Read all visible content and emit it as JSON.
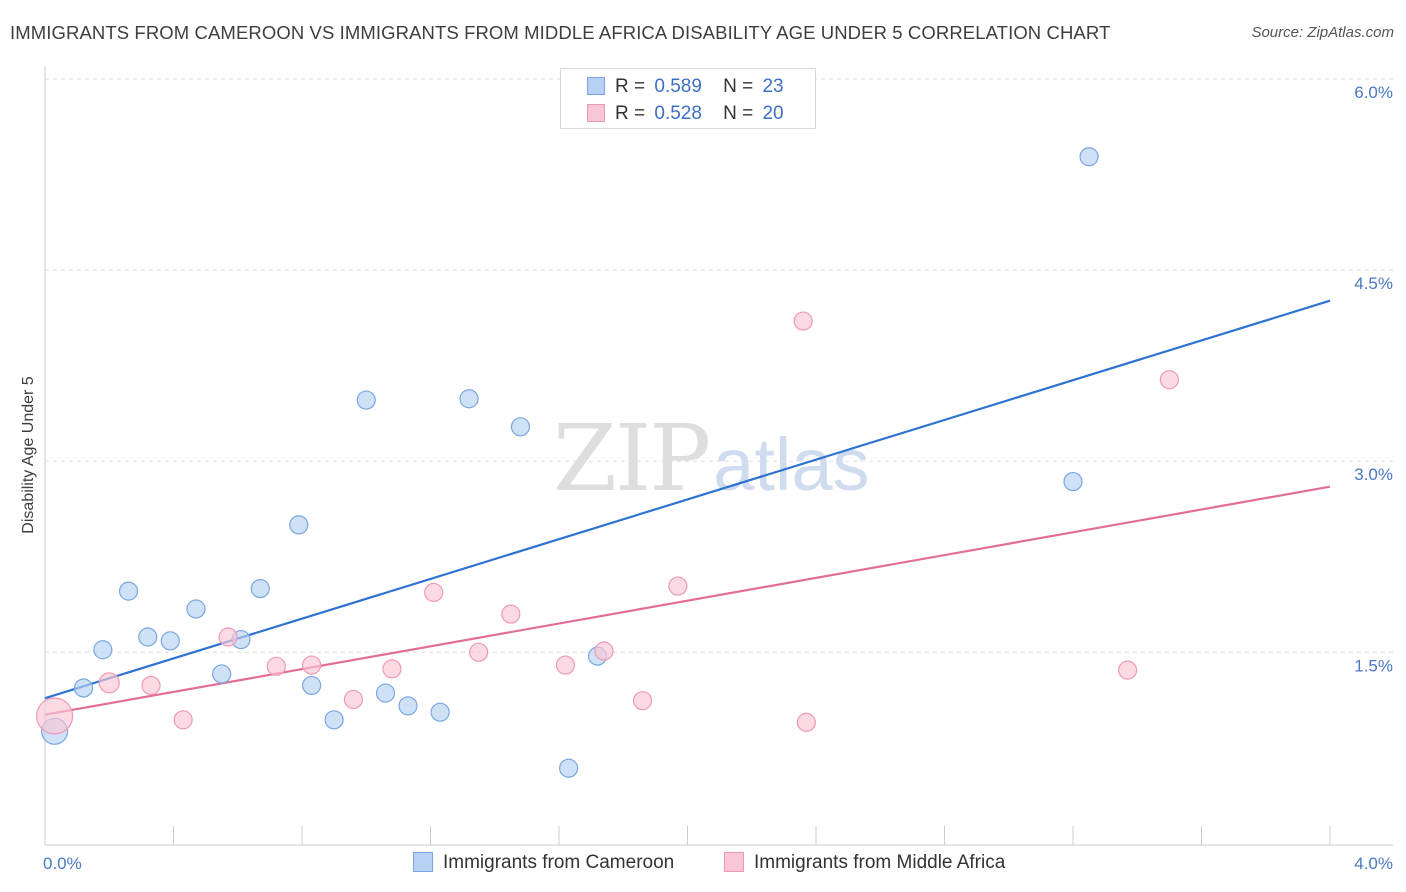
{
  "title": "IMMIGRANTS FROM CAMEROON VS IMMIGRANTS FROM MIDDLE AFRICA DISABILITY AGE UNDER 5 CORRELATION CHART",
  "source": "Source: ZipAtlas.com",
  "watermark": {
    "zip": "ZIP",
    "atlas": "atlas"
  },
  "legend": {
    "rows": [
      {
        "r_label": "R =",
        "r_value": "0.589",
        "n_label": "N =",
        "n_value": "23"
      },
      {
        "r_label": "R =",
        "r_value": "0.528",
        "n_label": "N =",
        "n_value": "20"
      }
    ]
  },
  "bottom_legend": {
    "cameroon": "Immigrants from Cameroon",
    "middle_africa": "Immigrants from Middle Africa"
  },
  "colors": {
    "cameroon_fill": "#b6d1f3",
    "cameroon_stroke": "#7ba6df",
    "cameroon_line": "#2e72d2",
    "middle_fill": "#f9c6d5",
    "middle_stroke": "#ee9ab4",
    "middle_line": "#e26e98",
    "tick_text": "#4a78c2",
    "grid": "#dddddd"
  },
  "chart_data": {
    "type": "scatter",
    "title": "IMMIGRANTS FROM CAMEROON VS IMMIGRANTS FROM MIDDLE AFRICA DISABILITY AGE UNDER 5 CORRELATION CHART",
    "xlabel": "",
    "ylabel": "Disability Age Under 5",
    "xlim": [
      0.0,
      4.0
    ],
    "ylim": [
      0.0,
      6.2
    ],
    "x_tick_labels": [
      "0.0%",
      "4.0%"
    ],
    "y_ticks": [
      1.5,
      3.0,
      4.5,
      6.0
    ],
    "y_tick_labels": [
      "1.5%",
      "3.0%",
      "4.5%",
      "6.0%"
    ],
    "grid": true,
    "series": [
      {
        "name": "Immigrants from Cameroon",
        "r": 0.589,
        "n": 23,
        "points": [
          [
            0.03,
            0.88,
            13
          ],
          [
            0.12,
            1.22,
            9
          ],
          [
            0.18,
            1.52,
            9
          ],
          [
            0.26,
            1.98,
            9
          ],
          [
            0.32,
            1.62,
            9
          ],
          [
            0.39,
            1.59,
            9
          ],
          [
            0.47,
            1.84,
            9
          ],
          [
            0.55,
            1.33,
            9
          ],
          [
            0.61,
            1.6,
            9
          ],
          [
            0.67,
            2.0,
            9
          ],
          [
            0.79,
            2.5,
            9
          ],
          [
            0.83,
            1.24,
            9
          ],
          [
            0.9,
            0.97,
            9
          ],
          [
            1.0,
            3.48,
            9
          ],
          [
            1.06,
            1.18,
            9
          ],
          [
            1.13,
            1.08,
            9
          ],
          [
            1.23,
            1.03,
            9
          ],
          [
            1.32,
            3.49,
            9
          ],
          [
            1.48,
            3.27,
            9
          ],
          [
            1.63,
            0.59,
            9
          ],
          [
            1.72,
            1.47,
            9
          ],
          [
            3.2,
            2.84,
            9
          ],
          [
            3.25,
            5.39,
            9
          ]
        ],
        "trend": {
          "x": [
            0.0,
            4.0
          ],
          "y": [
            1.14,
            4.26
          ]
        }
      },
      {
        "name": "Immigrants from Middle Africa",
        "r": 0.528,
        "n": 20,
        "points": [
          [
            0.03,
            1.0,
            18
          ],
          [
            0.2,
            1.26,
            10
          ],
          [
            0.33,
            1.24,
            9
          ],
          [
            0.43,
            0.97,
            9
          ],
          [
            0.57,
            1.62,
            9
          ],
          [
            0.72,
            1.39,
            9
          ],
          [
            0.83,
            1.4,
            9
          ],
          [
            0.96,
            1.13,
            9
          ],
          [
            1.08,
            1.37,
            9
          ],
          [
            1.21,
            1.97,
            9
          ],
          [
            1.35,
            1.5,
            9
          ],
          [
            1.45,
            1.8,
            9
          ],
          [
            1.62,
            1.4,
            9
          ],
          [
            1.74,
            1.51,
            9
          ],
          [
            1.86,
            1.12,
            9
          ],
          [
            1.97,
            2.02,
            9
          ],
          [
            2.36,
            4.1,
            9
          ],
          [
            2.37,
            0.95,
            9
          ],
          [
            3.37,
            1.36,
            9
          ],
          [
            3.5,
            3.64,
            9
          ]
        ],
        "trend": {
          "x": [
            0.0,
            4.0
          ],
          "y": [
            1.01,
            2.8
          ]
        }
      }
    ]
  }
}
